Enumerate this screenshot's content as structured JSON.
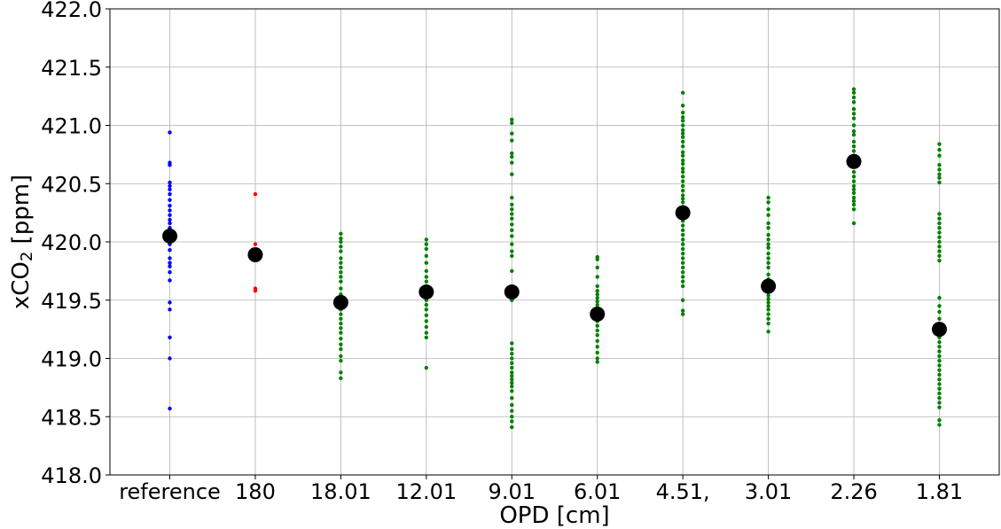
{
  "chart_data": {
    "type": "scatter",
    "title": "",
    "xlabel": "OPD [cm]",
    "ylabel": {
      "prefix": "xCO",
      "subscript": "2",
      "suffix": " [ppm]"
    },
    "categories": [
      "reference",
      "180",
      "18.01",
      "12.01",
      "9.01",
      "6.01",
      "4.51,",
      "3.01",
      "2.26",
      "1.81"
    ],
    "ylim": [
      418.0,
      422.0
    ],
    "yticks": [
      "418.0",
      "418.5",
      "419.0",
      "419.5",
      "420.0",
      "420.5",
      "421.0",
      "421.5",
      "422.0"
    ],
    "grid": true,
    "legend": "none",
    "series": [
      {
        "color": "#0000ff",
        "points": [
          {
            "x": "reference",
            "y": [
              420.94,
              420.68,
              420.66,
              420.51,
              420.48,
              420.45,
              420.41,
              420.36,
              420.31,
              420.27,
              420.23,
              420.19,
              420.16,
              420.12,
              420.08,
              420.02,
              419.98,
              419.93,
              419.86,
              419.82,
              419.79,
              419.74,
              419.67,
              419.48,
              419.42,
              419.18,
              419.0,
              418.57
            ]
          }
        ]
      },
      {
        "color": "#ff0000",
        "points": [
          {
            "x": "180",
            "y": [
              420.41,
              419.98,
              419.6,
              419.58
            ]
          }
        ]
      },
      {
        "color": "#008000",
        "points": [
          {
            "x": "18.01",
            "y": [
              420.07,
              420.03,
              420.0,
              419.96,
              419.92,
              419.86,
              419.82,
              419.78,
              419.74,
              419.7,
              419.66,
              419.6,
              419.55,
              419.51,
              419.47,
              419.42,
              419.38,
              419.34,
              419.3,
              419.26,
              419.22,
              419.17,
              419.12,
              419.08,
              419.02,
              418.98,
              418.88,
              418.83
            ]
          },
          {
            "x": "12.01",
            "y": [
              420.02,
              419.98,
              419.94,
              419.88,
              419.82,
              419.75,
              419.7,
              419.66,
              419.62,
              419.58,
              419.54,
              419.5,
              419.46,
              419.42,
              419.37,
              419.32,
              419.27,
              419.22,
              419.18,
              418.92
            ]
          },
          {
            "x": "9.01",
            "y": [
              421.05,
              421.02,
              420.93,
              420.87,
              420.76,
              420.73,
              420.68,
              420.58,
              420.38,
              420.32,
              420.28,
              420.24,
              420.2,
              420.15,
              420.1,
              420.05,
              419.98,
              419.92,
              419.88,
              419.75,
              419.55,
              419.5,
              419.13,
              419.08,
              419.04,
              419.0,
              418.96,
              418.92,
              418.88,
              418.85,
              418.82,
              418.79,
              418.76,
              418.72,
              418.66,
              418.6,
              418.55,
              418.5,
              418.46,
              418.41
            ]
          },
          {
            "x": "6.01",
            "y": [
              419.87,
              419.85,
              419.78,
              419.7,
              419.62,
              419.58,
              419.55,
              419.52,
              419.49,
              419.46,
              419.43,
              419.4,
              419.36,
              419.32,
              419.28,
              419.24,
              419.2,
              419.15,
              419.1,
              419.05,
              419.0,
              418.97
            ]
          },
          {
            "x": "4.51,",
            "y": [
              421.28,
              421.17,
              421.11,
              421.07,
              421.04,
              421.0,
              420.96,
              420.93,
              420.9,
              420.86,
              420.82,
              420.77,
              420.74,
              420.7,
              420.67,
              420.63,
              420.6,
              420.56,
              420.52,
              420.48,
              420.44,
              420.4,
              420.37,
              420.34,
              420.3,
              420.28,
              420.18,
              420.14,
              420.1,
              420.06,
              420.02,
              419.98,
              419.94,
              419.9,
              419.86,
              419.82,
              419.78,
              419.74,
              419.7,
              419.66,
              419.62,
              419.5,
              419.41,
              419.38
            ]
          },
          {
            "x": "3.01",
            "y": [
              420.38,
              420.34,
              420.28,
              420.23,
              420.16,
              420.12,
              420.06,
              420.02,
              419.98,
              419.95,
              419.9,
              419.86,
              419.82,
              419.78,
              419.72,
              419.68,
              419.64,
              419.6,
              419.57,
              419.54,
              419.51,
              419.48,
              419.45,
              419.42,
              419.38,
              419.34,
              419.3,
              419.23
            ]
          },
          {
            "x": "2.26",
            "y": [
              421.31,
              421.28,
              421.24,
              421.2,
              421.14,
              421.1,
              421.06,
              421.0,
              420.95,
              420.92,
              420.86,
              420.82,
              420.78,
              420.74,
              420.65,
              420.6,
              420.56,
              420.52,
              420.48,
              420.45,
              420.42,
              420.38,
              420.35,
              420.32,
              420.28,
              420.16
            ]
          },
          {
            "x": "1.81",
            "y": [
              420.84,
              420.79,
              420.74,
              420.66,
              420.62,
              420.58,
              420.55,
              420.51,
              420.24,
              420.2,
              420.16,
              420.12,
              420.08,
              420.04,
              420.0,
              419.96,
              419.92,
              419.88,
              419.84,
              419.52,
              419.45,
              419.4,
              419.34,
              419.22,
              419.18,
              419.14,
              419.1,
              419.06,
              419.02,
              418.98,
              418.94,
              418.9,
              418.86,
              418.82,
              418.78,
              418.74,
              418.7,
              418.66,
              418.62,
              418.58,
              418.47,
              418.43
            ]
          }
        ]
      },
      {
        "color": "#000000",
        "points": [
          {
            "x": "reference",
            "y": [
              420.05
            ]
          },
          {
            "x": "180",
            "y": [
              419.89
            ]
          },
          {
            "x": "18.01",
            "y": [
              419.48
            ]
          },
          {
            "x": "12.01",
            "y": [
              419.57
            ]
          },
          {
            "x": "9.01",
            "y": [
              419.57
            ]
          },
          {
            "x": "6.01",
            "y": [
              419.38
            ]
          },
          {
            "x": "4.51,",
            "y": [
              420.25
            ]
          },
          {
            "x": "3.01",
            "y": [
              419.62
            ]
          },
          {
            "x": "2.26",
            "y": [
              420.69
            ]
          },
          {
            "x": "1.81",
            "y": [
              419.25
            ]
          }
        ]
      }
    ]
  }
}
